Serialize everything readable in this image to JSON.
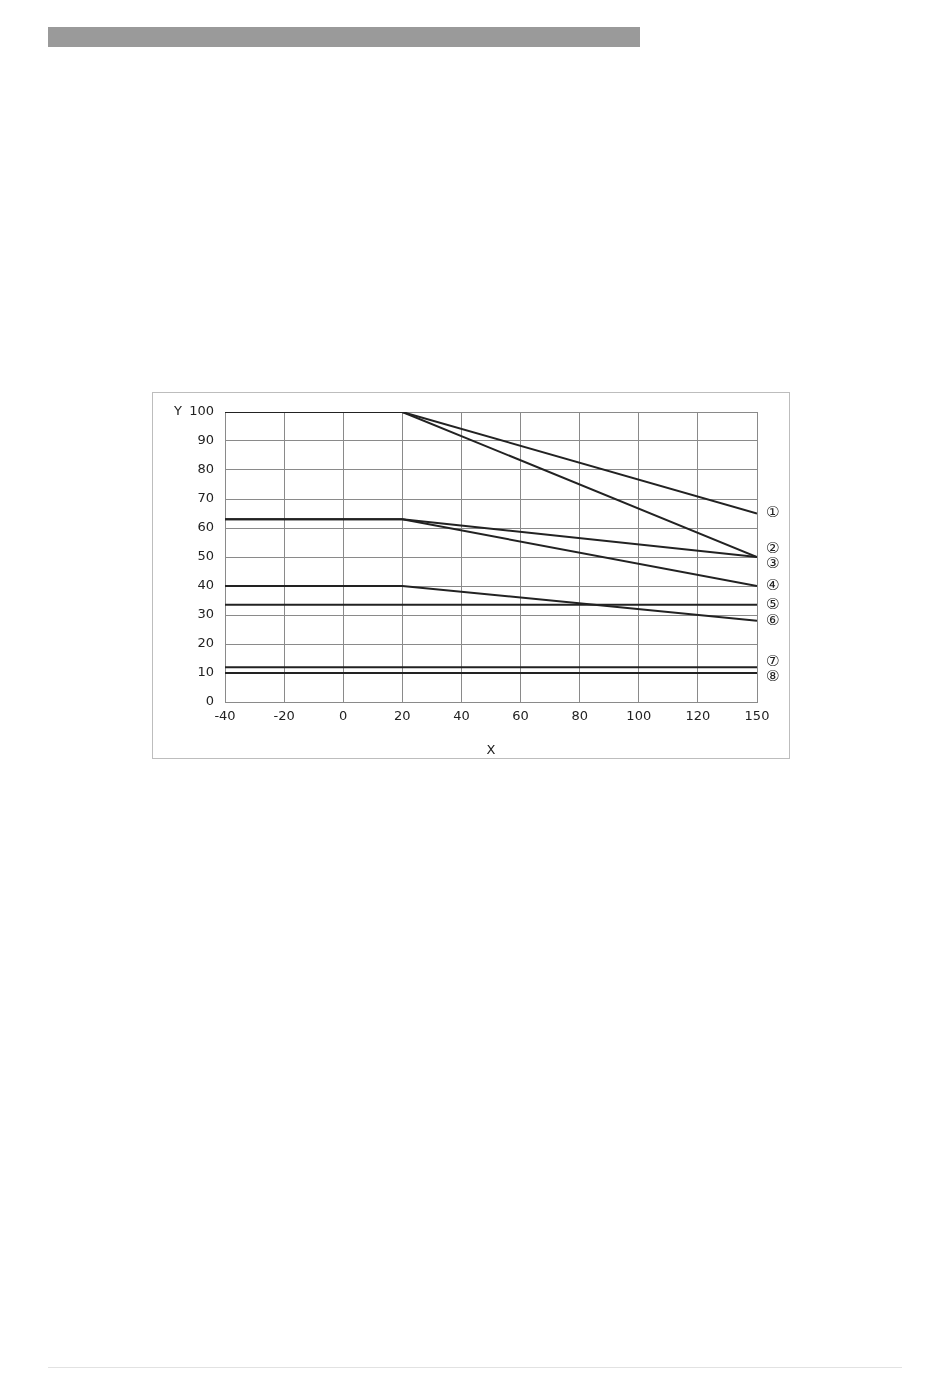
{
  "chart_data": {
    "type": "line",
    "xlabel": "X",
    "ylabel": "Y",
    "categories": [
      "-40",
      "-20",
      "0",
      "20",
      "40",
      "60",
      "80",
      "100",
      "120",
      "150"
    ],
    "ylim": [
      0,
      100
    ],
    "yticks": [
      0,
      10,
      20,
      30,
      40,
      50,
      60,
      70,
      80,
      90,
      100
    ],
    "grid": true,
    "marker": "none",
    "series": [
      {
        "name": "①",
        "color": "#222222",
        "x": [
          "-40",
          "20",
          "150"
        ],
        "values": [
          100,
          100,
          65
        ]
      },
      {
        "name": "②",
        "color": "#222222",
        "x": [
          "-40",
          "20",
          "150"
        ],
        "values": [
          100,
          100,
          50
        ]
      },
      {
        "name": "③",
        "color": "#222222",
        "x": [
          "-40",
          "20",
          "150"
        ],
        "values": [
          63,
          63,
          50
        ]
      },
      {
        "name": "④",
        "color": "#222222",
        "x": [
          "-40",
          "20",
          "150"
        ],
        "values": [
          63,
          63,
          40
        ]
      },
      {
        "name": "⑤",
        "color": "#222222",
        "x": [
          "-40",
          "150"
        ],
        "values": [
          33.5,
          33.5
        ]
      },
      {
        "name": "⑥",
        "color": "#222222",
        "x": [
          "-40",
          "20",
          "150"
        ],
        "values": [
          40,
          40,
          28
        ]
      },
      {
        "name": "⑦",
        "color": "#222222",
        "x": [
          "-40",
          "150"
        ],
        "values": [
          12,
          12
        ]
      },
      {
        "name": "⑧",
        "color": "#222222",
        "x": [
          "-40",
          "150"
        ],
        "values": [
          10,
          10
        ]
      }
    ]
  }
}
